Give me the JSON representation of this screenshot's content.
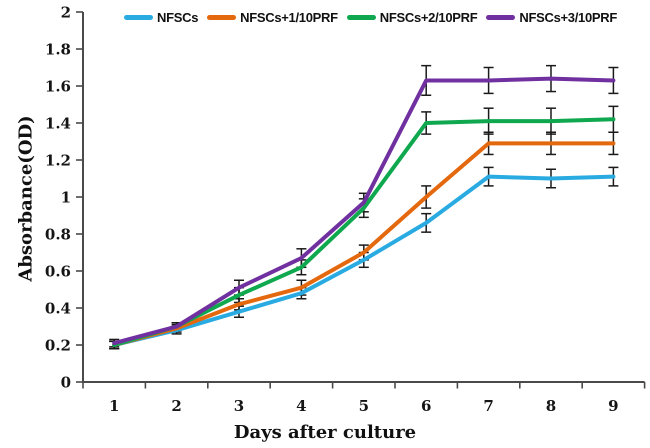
{
  "chart_data": {
    "type": "line",
    "title": "",
    "xlabel": "Days after culture",
    "ylabel": "Absorbance(OD)",
    "categories": [
      "1",
      "2",
      "3",
      "4",
      "5",
      "6",
      "7",
      "8",
      "9"
    ],
    "y_ticks": [
      "0",
      "0.2",
      "0.4",
      "0.6",
      "0.8",
      "1",
      "1.2",
      "1.4",
      "1.6",
      "1.8",
      "2"
    ],
    "ylim": [
      0,
      2
    ],
    "grid": false,
    "legend_position": "top",
    "error_bars": true,
    "axis_color": "#4a4a4a",
    "error_bar_color": "#1a1a1a",
    "series": [
      {
        "name": "NFSCs",
        "color": "#29ABE2",
        "values": [
          0.2,
          0.28,
          0.38,
          0.48,
          0.66,
          0.86,
          1.11,
          1.1,
          1.11
        ],
        "errors": [
          0.02,
          0.02,
          0.03,
          0.03,
          0.04,
          0.05,
          0.05,
          0.05,
          0.05
        ]
      },
      {
        "name": "NFSCs+1/10PRF",
        "color": "#E4680D",
        "values": [
          0.2,
          0.29,
          0.42,
          0.51,
          0.7,
          1.0,
          1.29,
          1.29,
          1.29
        ],
        "errors": [
          0.02,
          0.02,
          0.03,
          0.04,
          0.04,
          0.06,
          0.06,
          0.06,
          0.06
        ]
      },
      {
        "name": "NFSCs+2/10PRF",
        "color": "#0FA84F",
        "values": [
          0.2,
          0.3,
          0.47,
          0.62,
          0.94,
          1.4,
          1.41,
          1.41,
          1.42
        ],
        "errors": [
          0.02,
          0.02,
          0.04,
          0.04,
          0.05,
          0.06,
          0.07,
          0.07,
          0.07
        ]
      },
      {
        "name": "NFSCs+3/10PRF",
        "color": "#7030A0",
        "values": [
          0.21,
          0.3,
          0.51,
          0.67,
          0.97,
          1.63,
          1.63,
          1.64,
          1.63
        ],
        "errors": [
          0.02,
          0.02,
          0.04,
          0.05,
          0.05,
          0.08,
          0.07,
          0.07,
          0.07
        ]
      }
    ]
  }
}
